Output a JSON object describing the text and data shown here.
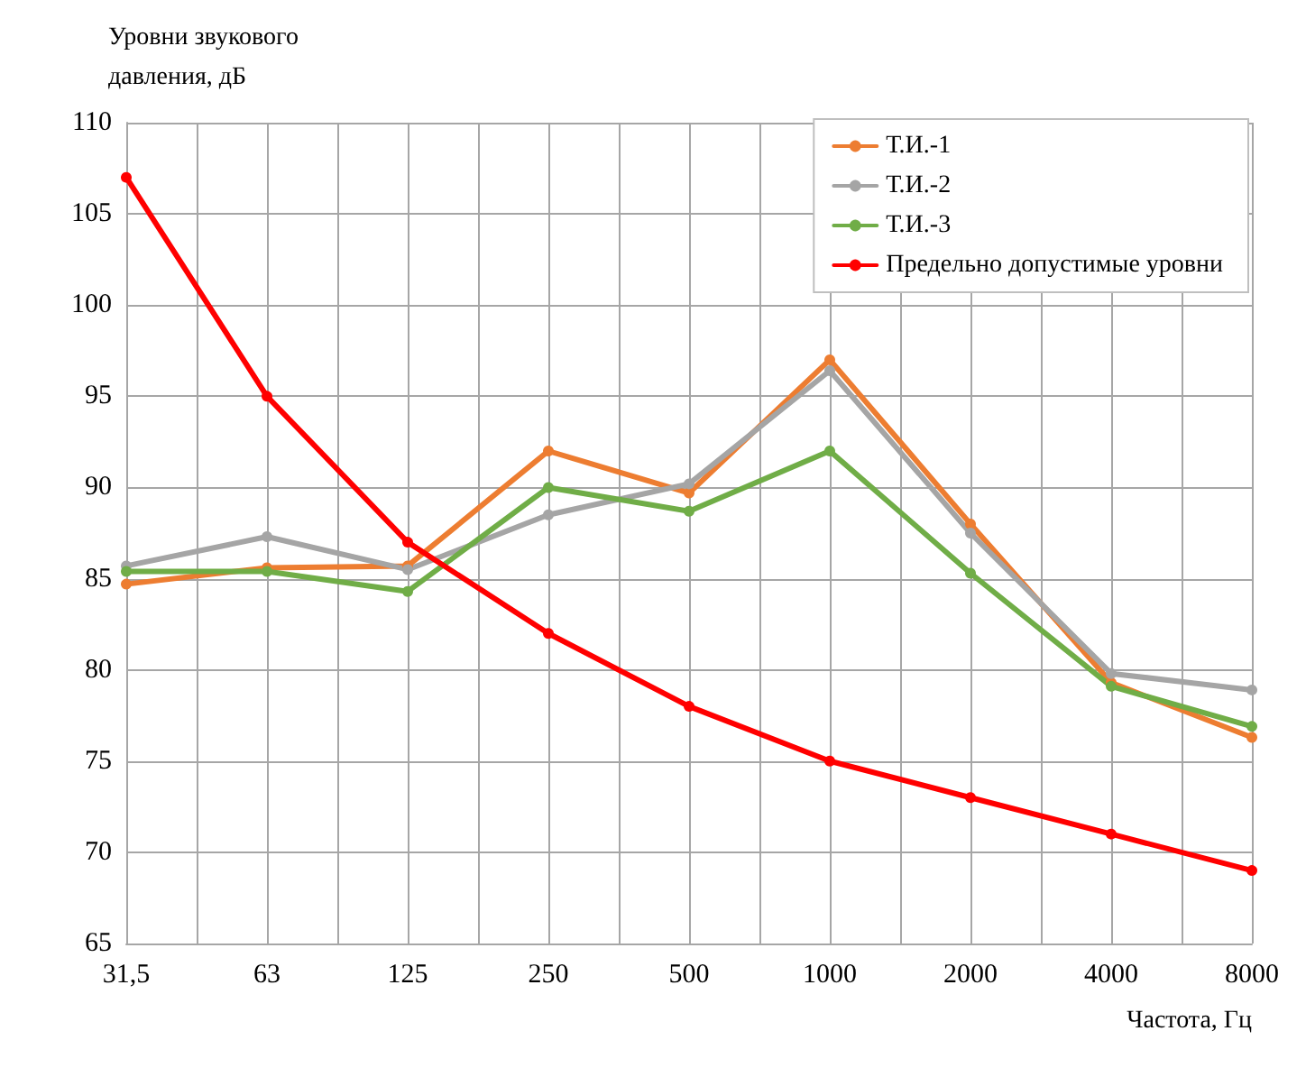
{
  "chart_data": {
    "type": "line",
    "ylabel": "Уровни звукового\nдавления, дБ",
    "xlabel": "Частота, Гц",
    "categories": [
      "31,5",
      "63",
      "125",
      "250",
      "500",
      "1000",
      "2000",
      "4000",
      "8000"
    ],
    "series": [
      {
        "name": "Т.И.-1",
        "color": "#ed7d31",
        "values": [
          84.7,
          85.6,
          85.7,
          92,
          89.7,
          97,
          88,
          79.3,
          76.3
        ]
      },
      {
        "name": "Т.И.-2",
        "color": "#a5a5a5",
        "values": [
          85.7,
          87.3,
          85.5,
          88.5,
          90.2,
          96.4,
          87.5,
          79.8,
          78.9
        ]
      },
      {
        "name": "Т.И.-3",
        "color": "#70ad47",
        "values": [
          85.4,
          85.4,
          84.3,
          90,
          88.7,
          92,
          85.3,
          79.1,
          76.9
        ]
      },
      {
        "name": "Предельно допустимые уровни",
        "color": "#ff0000",
        "values": [
          107,
          95,
          87,
          82,
          78,
          75,
          73,
          71,
          69
        ]
      }
    ],
    "ylim": [
      65,
      110
    ],
    "yticks": [
      65,
      70,
      75,
      80,
      85,
      90,
      95,
      100,
      105,
      110
    ],
    "grid": true,
    "legend": "top right",
    "marker": "circle",
    "line_style": "solid"
  }
}
